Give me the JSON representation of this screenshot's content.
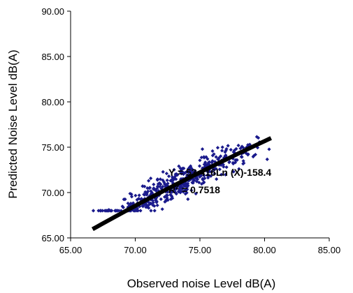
{
  "chart_data": {
    "type": "scatter",
    "title": "",
    "xlabel": "Observed noise Level dB(A)",
    "ylabel": "Predicted Noise Level dB(A)",
    "xlim": [
      65,
      85
    ],
    "ylim": [
      65,
      90
    ],
    "x_ticks": [
      "65.00",
      "70.00",
      "75.00",
      "80.00",
      "85.00"
    ],
    "y_ticks": [
      "65.00",
      "70.00",
      "75.00",
      "80.00",
      "85.00",
      "90.00"
    ],
    "grid": false,
    "legend": "none",
    "marker": "diamond",
    "colors": {
      "points": "#1a1a8c",
      "trendline": "#000000",
      "axes": "#000000"
    },
    "trendline": {
      "type": "logarithmic",
      "a": 53.416,
      "b": -158.4,
      "x_range": [
        66.7,
        80.5
      ],
      "equation_label": "Y = 53.416Ln (X)-158.4",
      "r2_prefix": "R",
      "r2_exponent": "2",
      "r2_value": " = 0.7518"
    },
    "series": [
      {
        "point_count": 500,
        "x_range": [
          66.5,
          80.5
        ],
        "residual_sd": 1.55,
        "seed": 12345
      }
    ]
  }
}
